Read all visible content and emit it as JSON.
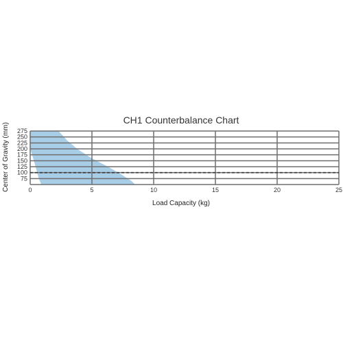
{
  "chart_data": {
    "type": "area",
    "title": "CH1 Counterbalance Chart",
    "xlabel": "Load Capacity (kg)",
    "ylabel": "Center of Gravity (mm)",
    "xlim": [
      0,
      25
    ],
    "ylim": [
      50,
      275
    ],
    "x_ticks": [
      0,
      5,
      10,
      15,
      20,
      25
    ],
    "y_ticks": [
      75,
      100,
      125,
      150,
      175,
      200,
      225,
      250,
      275
    ],
    "grid": true,
    "series": [
      {
        "kind": "area",
        "fill_color": "#a8cde6",
        "points": [
          {
            "x": 0,
            "y": 50
          },
          {
            "x": 0,
            "y": 275
          },
          {
            "x": 2.3,
            "y": 275
          },
          {
            "x": 3.0,
            "y": 235
          },
          {
            "x": 3.8,
            "y": 200
          },
          {
            "x": 5.0,
            "y": 160
          },
          {
            "x": 6.3,
            "y": 125
          },
          {
            "x": 7.3,
            "y": 95
          },
          {
            "x": 8.2,
            "y": 65
          },
          {
            "x": 8.5,
            "y": 50
          },
          {
            "x": 0.9,
            "y": 50
          },
          {
            "x": 0.7,
            "y": 75
          },
          {
            "x": 0.3,
            "y": 150
          },
          {
            "x": 0,
            "y": 200
          }
        ]
      },
      {
        "kind": "reference_line",
        "y": 100,
        "style": "dashed",
        "color": "#333333"
      }
    ]
  }
}
